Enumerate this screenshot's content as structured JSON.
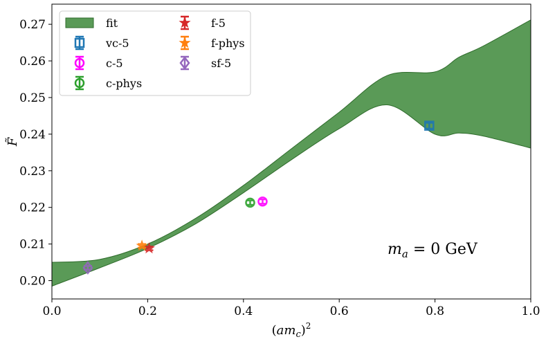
{
  "chart_data": {
    "type": "scatter",
    "xlabel": "(am_c)^2",
    "ylabel": "F̃",
    "xlim": [
      0.0,
      1.0
    ],
    "ylim": [
      0.195,
      0.2755
    ],
    "x_ticks": [
      0.0,
      0.2,
      0.4,
      0.6,
      0.8,
      1.0
    ],
    "x_tick_labels": [
      "0.0",
      "0.2",
      "0.4",
      "0.6",
      "0.8",
      "1.0"
    ],
    "y_ticks": [
      0.2,
      0.21,
      0.22,
      0.23,
      0.24,
      0.25,
      0.26,
      0.27
    ],
    "y_tick_labels": [
      "0.20",
      "0.21",
      "0.22",
      "0.23",
      "0.24",
      "0.25",
      "0.26",
      "0.27"
    ],
    "grid": false,
    "legend_position": "top-left",
    "annotation": "m_a = 0 GeV",
    "band": {
      "name": "fit",
      "color": "#5a9a57",
      "edge_color": "#2e6b2b",
      "x": [
        0.0,
        0.1,
        0.2,
        0.3,
        0.4,
        0.5,
        0.6,
        0.7,
        0.8,
        0.85,
        0.9,
        1.0
      ],
      "upper": [
        0.205,
        0.2058,
        0.21,
        0.217,
        0.226,
        0.236,
        0.246,
        0.256,
        0.257,
        0.261,
        0.264,
        0.2712
      ],
      "lower": [
        0.1985,
        0.2035,
        0.2088,
        0.2155,
        0.224,
        0.233,
        0.2415,
        0.248,
        0.24,
        0.2403,
        0.2395,
        0.2362
      ]
    },
    "series": [
      {
        "name": "vc-5",
        "marker": "square",
        "color": "#1f77b4",
        "points": [
          {
            "x": 0.788,
            "y": 0.2423,
            "err": 0.0008
          }
        ]
      },
      {
        "name": "c-5",
        "marker": "circle",
        "color": "#ff00ff",
        "points": [
          {
            "x": 0.44,
            "y": 0.2216,
            "err": 0.0006
          }
        ]
      },
      {
        "name": "c-phys",
        "marker": "circle",
        "color": "#2ca02c",
        "points": [
          {
            "x": 0.414,
            "y": 0.2213,
            "err": 0.0006
          }
        ]
      },
      {
        "name": "f-5",
        "marker": "star",
        "color": "#d62728",
        "points": [
          {
            "x": 0.203,
            "y": 0.2088,
            "err": 0.0005
          }
        ]
      },
      {
        "name": "f-phys",
        "marker": "star",
        "color": "#ff7f0e",
        "points": [
          {
            "x": 0.188,
            "y": 0.2095,
            "err": 0.0005
          }
        ]
      },
      {
        "name": "sf-5",
        "marker": "diamond",
        "color": "#9467bd",
        "points": [
          {
            "x": 0.075,
            "y": 0.2035,
            "err": 0.0005
          }
        ]
      }
    ]
  }
}
